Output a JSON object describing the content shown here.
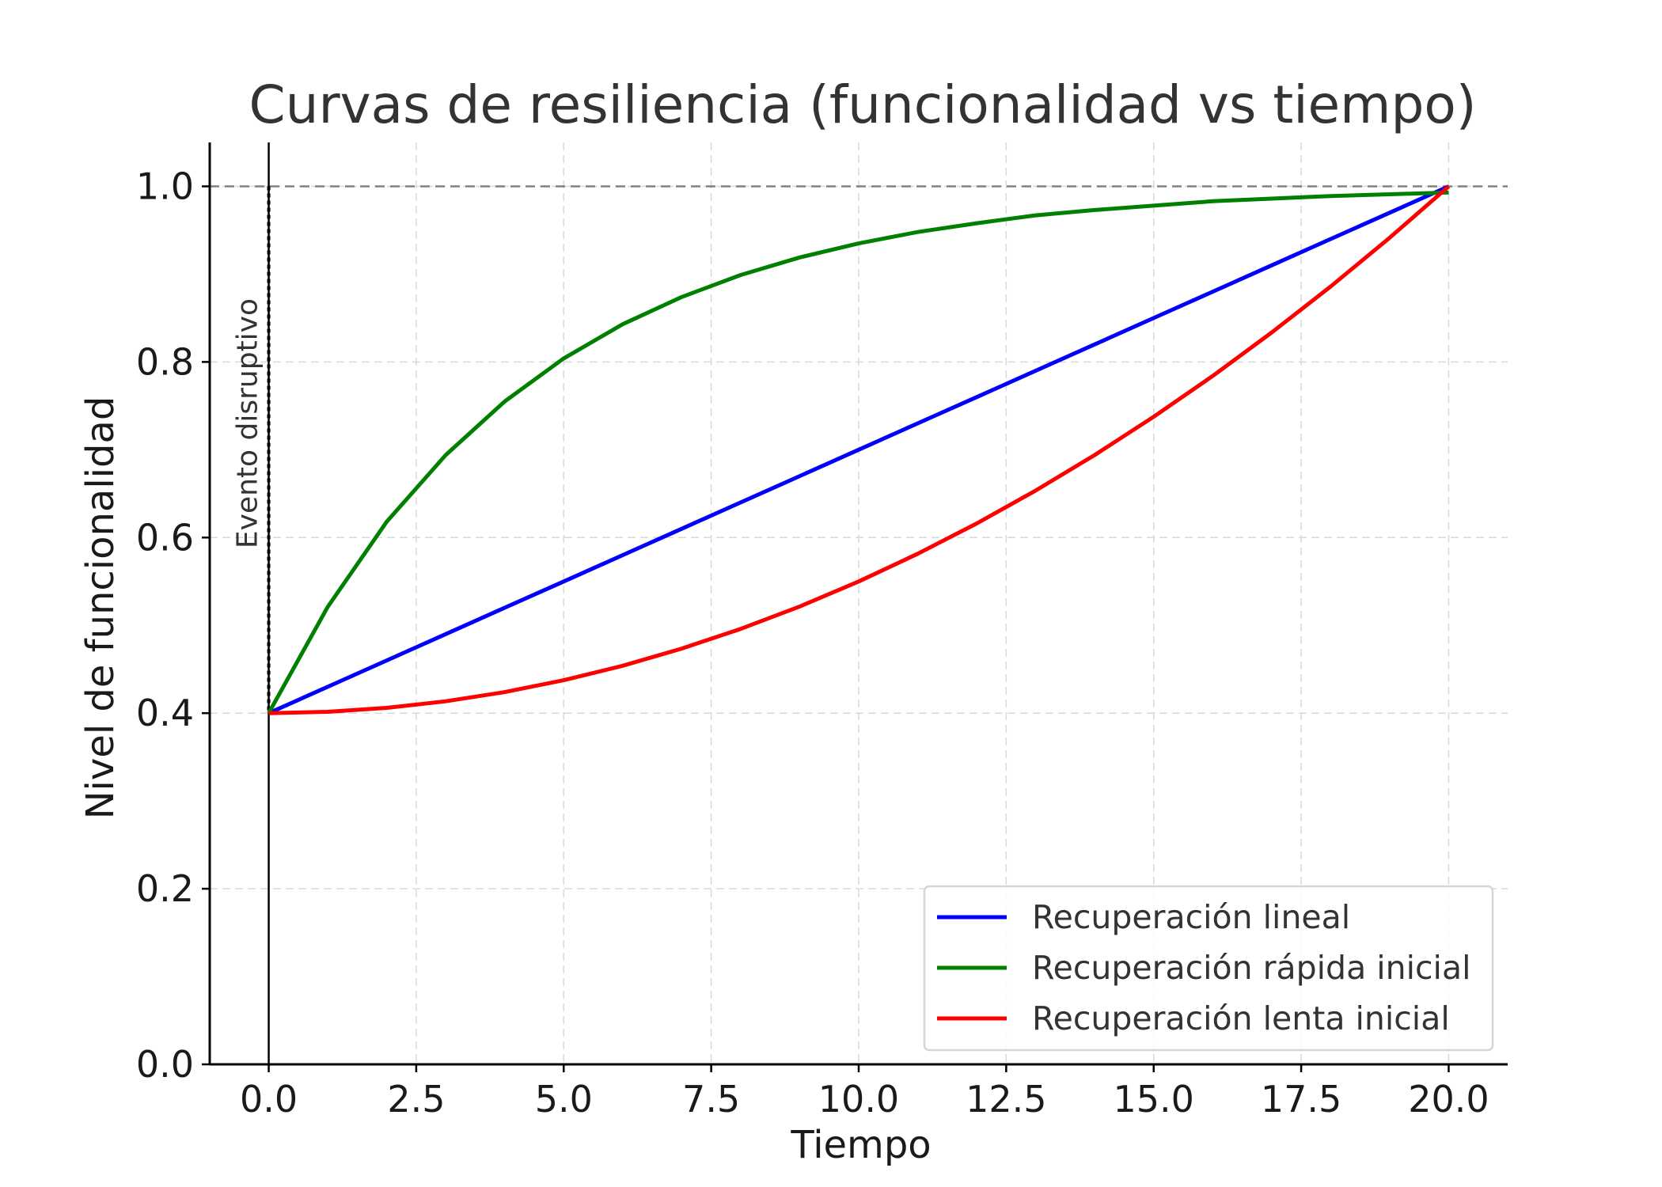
{
  "chart_data": {
    "type": "line",
    "title": "Curvas de resiliencia (funcionalidad vs tiempo)",
    "xlabel": "Tiempo",
    "ylabel": "Nivel de funcionalidad",
    "xlim": [
      -1,
      21
    ],
    "ylim": [
      0,
      1.05
    ],
    "xticks": [
      0,
      2.5,
      5,
      7.5,
      10,
      12.5,
      15,
      17.5,
      20
    ],
    "xtick_labels": [
      "0.0",
      "2.5",
      "5.0",
      "7.5",
      "10.0",
      "12.5",
      "15.0",
      "17.5",
      "20.0"
    ],
    "yticks": [
      0,
      0.2,
      0.4,
      0.6,
      0.8,
      1.0
    ],
    "ytick_labels": [
      "0.0",
      "0.2",
      "0.4",
      "0.6",
      "0.8",
      "1.0"
    ],
    "grid": true,
    "legend_position": "lower-right",
    "x": [
      0,
      1,
      2,
      3,
      4,
      5,
      6,
      7,
      8,
      9,
      10,
      11,
      12,
      13,
      14,
      15,
      16,
      17,
      18,
      19,
      20
    ],
    "series": [
      {
        "name": "Recuperación lineal",
        "color": "#0000ff",
        "values": [
          0.4,
          0.43,
          0.46,
          0.49,
          0.52,
          0.55,
          0.58,
          0.61,
          0.64,
          0.67,
          0.7,
          0.73,
          0.76,
          0.79,
          0.82,
          0.85,
          0.88,
          0.91,
          0.94,
          0.97,
          1.0
        ]
      },
      {
        "name": "Recuperación rápida inicial",
        "color": "#008000",
        "values": [
          0.4,
          0.521,
          0.618,
          0.694,
          0.755,
          0.804,
          0.843,
          0.874,
          0.899,
          0.919,
          0.935,
          0.948,
          0.958,
          0.967,
          0.973,
          0.978,
          0.983,
          0.986,
          0.989,
          0.991,
          0.993
        ]
      },
      {
        "name": "Recuperación lenta inicial",
        "color": "#ff0000",
        "values": [
          0.4,
          0.4015,
          0.406,
          0.4135,
          0.424,
          0.4375,
          0.454,
          0.4735,
          0.496,
          0.5215,
          0.55,
          0.5815,
          0.616,
          0.6535,
          0.694,
          0.7375,
          0.784,
          0.8335,
          0.886,
          0.9415,
          1.0
        ]
      }
    ],
    "reference_lines": {
      "hline_y": 1.0,
      "hline_color": "#808080",
      "vline_x": 0,
      "vline_color": "#000000",
      "vline_label": "Evento disruptivo"
    }
  }
}
